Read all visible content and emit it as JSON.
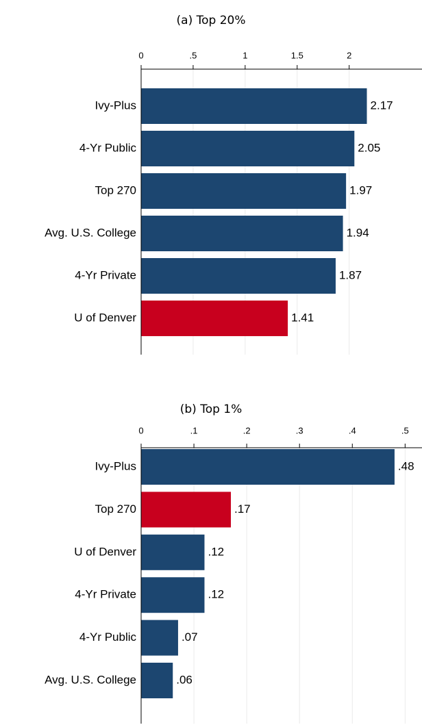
{
  "chart_data": [
    {
      "type": "hbar",
      "title": "(a) Top 20%",
      "categories": [
        "Ivy-Plus",
        "4-Yr Public",
        "Top 270",
        "Avg. U.S. College",
        "4-Yr Private",
        "U of Denver"
      ],
      "values": [
        2.17,
        2.05,
        1.97,
        1.94,
        1.87,
        1.41
      ],
      "colors": [
        "#1c4670",
        "#1c4670",
        "#1c4670",
        "#1c4670",
        "#1c4670",
        "#c8001e"
      ],
      "xlim": [
        0,
        2.7
      ],
      "xticks": [
        0,
        {
          "value": 0.5,
          "label": ".5"
        },
        1,
        1.5,
        2
      ],
      "grid": true
    },
    {
      "type": "hbar",
      "title": "(b) Top 1%",
      "categories": [
        "Ivy-Plus",
        "Top 270",
        "U of Denver",
        "4-Yr Private",
        "4-Yr Public",
        "Avg. U.S. College"
      ],
      "values": [
        0.48,
        0.17,
        0.12,
        0.12,
        0.07,
        0.06
      ],
      "value_labels": [
        ".48",
        ".17",
        ".12",
        ".12",
        ".07",
        ".06"
      ],
      "colors": [
        "#1c4670",
        "#c8001e",
        "#1c4670",
        "#1c4670",
        "#1c4670",
        "#1c4670"
      ],
      "xlim": [
        0,
        0.532
      ],
      "xticks": [
        0,
        {
          "value": 0.1,
          "label": ".1"
        },
        {
          "value": 0.2,
          "label": ".2"
        },
        {
          "value": 0.3,
          "label": ".3"
        },
        {
          "value": 0.4,
          "label": ".4"
        },
        {
          "value": 0.5,
          "label": ".5"
        }
      ],
      "grid": true
    }
  ]
}
